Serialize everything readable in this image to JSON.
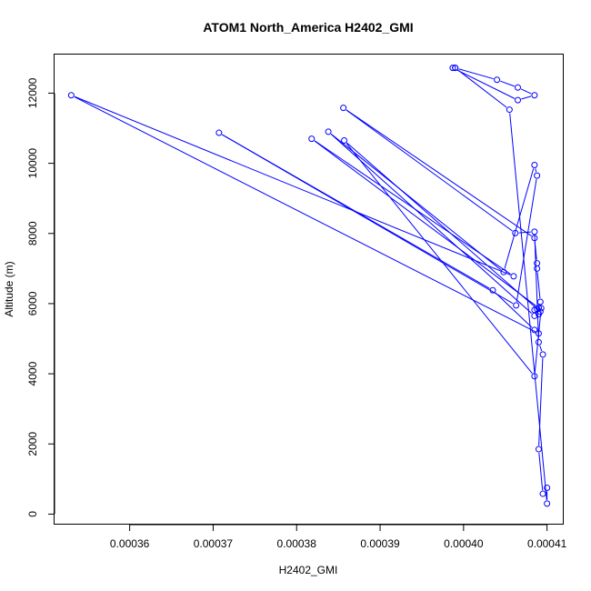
{
  "chart_data": {
    "type": "line",
    "title": "ATOM1 North_America H2402_GMI",
    "xlabel": "H2402_GMI",
    "ylabel": "Altitude (m)",
    "xlim": [
      0.000351,
      0.000412
    ],
    "ylim": [
      -300,
      13100
    ],
    "x_ticks": [
      0.00036,
      0.00037,
      0.00038,
      0.00039,
      0.0004,
      0.00041
    ],
    "x_tick_labels": [
      "0.00036",
      "0.00037",
      "0.00038",
      "0.00039",
      "0.00040",
      "0.00041"
    ],
    "y_ticks": [
      0,
      2000,
      4000,
      6000,
      8000,
      10000,
      12000
    ],
    "y_tick_labels": [
      "0",
      "2000",
      "4000",
      "6000",
      "8000",
      "10000",
      "12000"
    ],
    "grid": false,
    "series": [
      {
        "color": "#0000ff",
        "marker": "open-circle",
        "x": [
          0.000399,
          0.000404,
          0.0004065,
          0.0004085,
          0.0004065,
          0.0003987,
          0.000399,
          0.0004055,
          0.00041,
          0.00041,
          0.0004095,
          0.000409,
          0.0004095,
          0.000409,
          0.0004085,
          0.0004062,
          0.0003856,
          0.0004085,
          0.0004088,
          0.0004088,
          0.0004092,
          0.0004088,
          0.0004085,
          0.0003838,
          0.0004048,
          0.0004085,
          0.0004088,
          0.0004063,
          0.0003707,
          0.0004035,
          0.0004085,
          0.000409,
          0.000353,
          0.000406,
          0.0003818,
          0.000409,
          0.0004092,
          0.0003857,
          0.0004085,
          0.0004093,
          0.000409,
          0.0004085
        ],
        "y": [
          12720,
          12380,
          12160,
          11940,
          11800,
          12720,
          12720,
          11530,
          300,
          750,
          580,
          1850,
          4550,
          4900,
          8050,
          8010,
          11580,
          7870,
          7150,
          7000,
          6050,
          5850,
          5650,
          10900,
          6900,
          9950,
          9650,
          5950,
          10870,
          6380,
          5250,
          5150,
          11940,
          6780,
          10700,
          5880,
          5770,
          10650,
          3930,
          5870,
          5700,
          5820
        ]
      }
    ]
  }
}
